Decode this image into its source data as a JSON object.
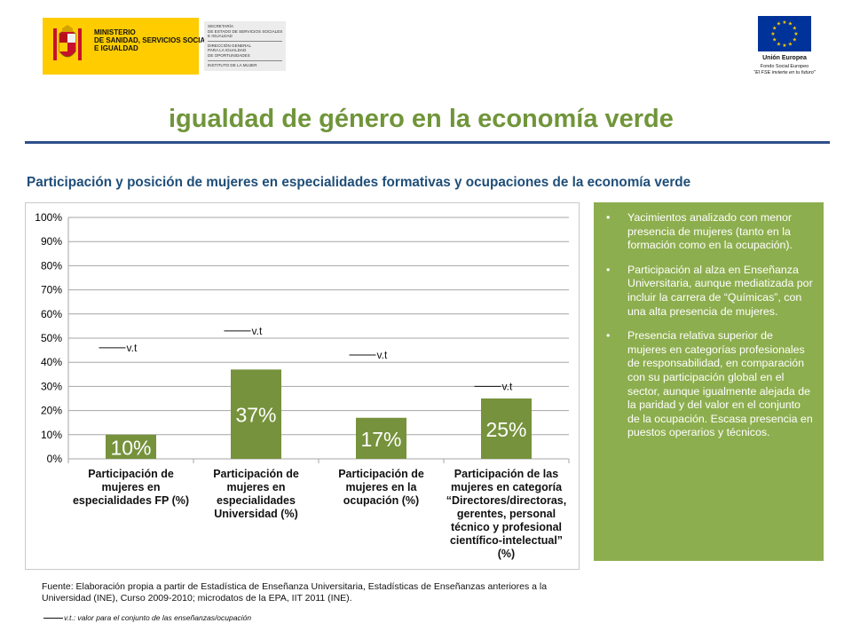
{
  "header": {
    "ministry": {
      "name_lines": [
        "MINISTERIO",
        "DE SANIDAD, SERVICIOS SOCIALES",
        "E IGUALDAD"
      ],
      "block_lines": [
        "SECRETARÍA",
        "DE ESTADO DE SERVICIOS SOCIALES",
        "E IGUALDAD"
      ],
      "block_lines_2": [
        "DIRECCIÓN GENERAL",
        "PARA LA IGUALDAD",
        "DE OPORTUNIDADES"
      ],
      "block_lines_3": [
        "INSTITUTO DE LA MUJER"
      ],
      "flag_color": "#ffcc00"
    },
    "eu": {
      "title": "Unión Europea",
      "fund": "Fondo Social Europeo",
      "motto": "\"El FSE invierte en tu futuro\"",
      "flag_color": "#003399",
      "star_color": "#ffcc00"
    }
  },
  "page_title": "igualdad de género en la economía verde",
  "subtitle": "Participación y posición de mujeres en especialidades formativas y ocupaciones de la economía verde",
  "chart_data": {
    "type": "bar",
    "categories": [
      [
        "Participación de",
        "mujeres en",
        "especialidades FP (%)"
      ],
      [
        "Participación de",
        "mujeres en",
        "especialidades",
        "Universidad (%)"
      ],
      [
        "Participación de",
        "mujeres en la",
        "ocupación (%)"
      ],
      [
        "Participación de las",
        "mujeres en categoría",
        "“Directores/directoras,",
        "gerentes, personal",
        "técnico y profesional",
        "científico-intelectual”",
        "(%)"
      ]
    ],
    "values": [
      10,
      37,
      17,
      25
    ],
    "value_labels": [
      "10%",
      "37%",
      "17%",
      "25%"
    ],
    "reference_values": [
      46,
      53,
      43,
      30
    ],
    "reference_label": "v.t",
    "ylim": [
      0,
      100
    ],
    "yticks": [
      0,
      10,
      20,
      30,
      40,
      50,
      60,
      70,
      80,
      90,
      100
    ],
    "ytick_labels": [
      "0%",
      "10%",
      "20%",
      "30%",
      "40%",
      "50%",
      "60%",
      "70%",
      "80%",
      "90%",
      "100%"
    ],
    "grid": true,
    "bar_color": "#76923c",
    "grid_color": "#a6a6a6"
  },
  "side_panel": {
    "bullet": "•",
    "items": [
      "Yacimientos analizado con menor presencia de mujeres (tanto en la formación como en la ocupación).",
      "Participación al alza en Enseñanza Universitaria, aunque mediatizada por incluir la carrera de “Químicas”, con una alta presencia de mujeres.",
      "Presencia relativa superior de mujeres en categorías profesionales de responsabilidad, en comparación con su participación global en el sector, aunque igualmente alejada de la paridad y del valor en el conjunto de la ocupación. Escasa presencia en puestos operarios y técnicos."
    ],
    "background": "#8dae4e"
  },
  "source_note": "Fuente: Elaboración propia a partir de Estadística de Enseñanza Universitaria, Estadísticas de Enseñanzas anteriores a la Universidad (INE), Curso 2009-2010; microdatos de la EPA, IIT 2011 (INE).",
  "legend_note": "v.t.: valor para el conjunto de las enseñanzas/ocupación"
}
